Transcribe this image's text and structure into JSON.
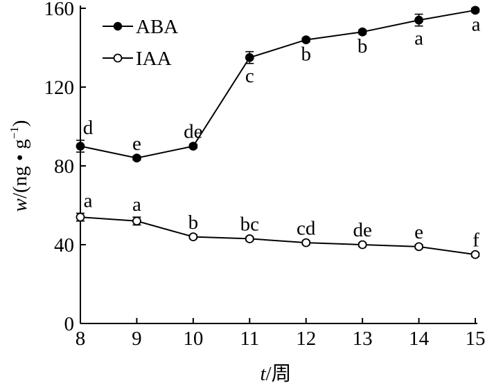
{
  "chart_data": {
    "type": "line",
    "title": "",
    "xlabel_var": "t",
    "xlabel_unit": "/周",
    "ylabel_var": "w",
    "ylabel_unit": "/(ng • g",
    "ylabel_exp": "−1",
    "ylabel_close": ")",
    "x": [
      8,
      9,
      10,
      11,
      12,
      13,
      14,
      15
    ],
    "xlim": [
      8,
      15
    ],
    "ylim": [
      0,
      160
    ],
    "yticks": [
      0,
      40,
      80,
      120,
      160
    ],
    "legend_position": "top-left",
    "series": [
      {
        "name": "ABA",
        "marker": "filled-circle",
        "values": [
          90,
          84,
          90,
          135,
          144,
          148,
          154,
          159
        ],
        "errors": [
          3,
          1,
          1,
          3,
          1,
          1,
          3,
          1
        ],
        "letters": [
          "d",
          "e",
          "de",
          "c",
          "b",
          "b",
          "a",
          "a"
        ],
        "letter_placement": [
          "above",
          "above",
          "above",
          "below",
          "below",
          "below",
          "below",
          "below"
        ]
      },
      {
        "name": "IAA",
        "marker": "open-circle",
        "values": [
          54,
          52,
          44,
          43,
          41,
          40,
          39,
          35
        ],
        "errors": [
          2,
          2,
          1,
          1,
          1,
          1,
          1,
          1
        ],
        "letters": [
          "a",
          "a",
          "b",
          "bc",
          "cd",
          "de",
          "e",
          "f"
        ],
        "letter_placement": [
          "above",
          "above",
          "above",
          "above",
          "above",
          "above",
          "above",
          "above"
        ]
      }
    ]
  }
}
